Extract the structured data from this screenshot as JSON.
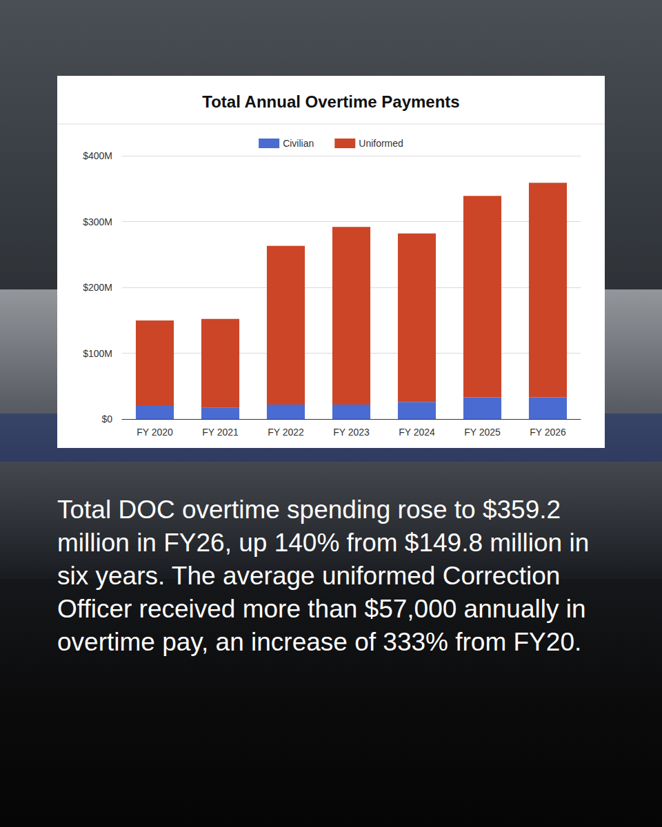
{
  "chart_data": {
    "type": "bar",
    "title": "Total Annual Overtime Payments",
    "categories": [
      "FY 2020",
      "FY 2021",
      "FY 2022",
      "FY 2023",
      "FY 2024",
      "FY 2025",
      "FY 2026"
    ],
    "series": [
      {
        "name": "Civilian",
        "color": "#4a6bd1",
        "values": [
          21,
          17,
          22,
          22,
          26,
          33,
          33
        ]
      },
      {
        "name": "Uniformed",
        "color": "#cc4527",
        "values": [
          128.8,
          135,
          241,
          270,
          256,
          306,
          326
        ]
      }
    ],
    "stacked": true,
    "ylim": [
      0,
      400
    ],
    "yticks": [
      {
        "value": 0,
        "label": "$0"
      },
      {
        "value": 100,
        "label": "$100M"
      },
      {
        "value": 200,
        "label": "$200M"
      },
      {
        "value": 300,
        "label": "$300M"
      },
      {
        "value": 400,
        "label": "$400M"
      }
    ],
    "grid": true,
    "legend": "top",
    "annotations": [
      "Total DOC overtime spending rose to $359.2 million in FY26, up 140% from $149.8 million in six years. The average uniformed Correction Officer received more than $57,000 annually in overtime pay, an increase of 333% from FY20."
    ]
  }
}
